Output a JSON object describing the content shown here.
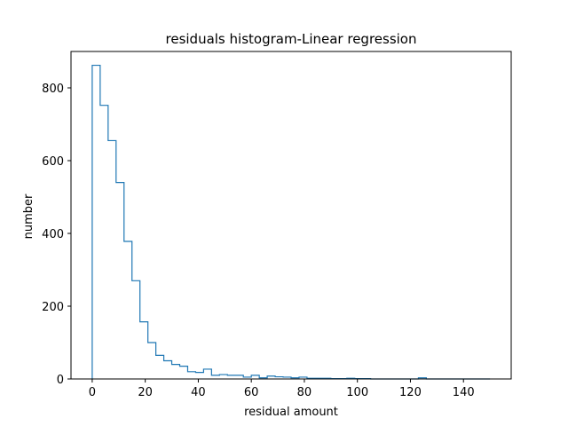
{
  "chart_data": {
    "type": "bar",
    "histtype": "step",
    "title": "residuals histogram-Linear regression",
    "xlabel": "residual amount",
    "ylabel": "number",
    "xlim": [
      -8,
      158
    ],
    "ylim": [
      0,
      900
    ],
    "xticks": [
      0,
      20,
      40,
      60,
      80,
      100,
      120,
      140
    ],
    "yticks": [
      0,
      200,
      400,
      600,
      800
    ],
    "grid": false,
    "color": "#1f77b4",
    "bin_edges": [
      0,
      3,
      6,
      9,
      12,
      15,
      18,
      21,
      24,
      27,
      30,
      33,
      36,
      39,
      42,
      45,
      48,
      51,
      54,
      57,
      60,
      63,
      66,
      69,
      72,
      75,
      78,
      81,
      84,
      87,
      90,
      93,
      96,
      99,
      102,
      105,
      108,
      111,
      114,
      117,
      120,
      123,
      126,
      129,
      132,
      135,
      138,
      141,
      144,
      147,
      150
    ],
    "values": [
      862,
      752,
      655,
      540,
      378,
      270,
      157,
      100,
      65,
      50,
      40,
      35,
      20,
      18,
      27,
      10,
      12,
      10,
      10,
      5,
      10,
      3,
      8,
      6,
      5,
      3,
      5,
      2,
      2,
      2,
      1,
      1,
      2,
      1,
      1,
      0,
      0,
      0,
      0,
      0,
      0,
      3,
      0,
      0,
      0,
      0,
      0,
      0,
      0,
      0
    ]
  }
}
